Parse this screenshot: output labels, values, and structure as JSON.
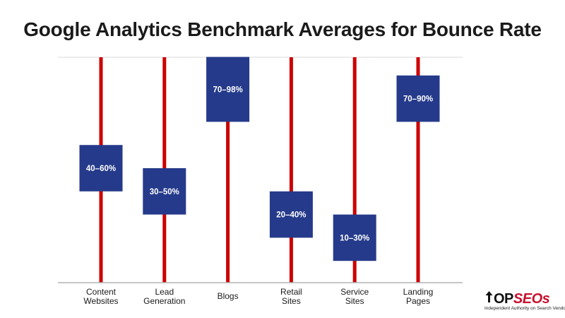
{
  "colors": {
    "stem": "#cc0000",
    "box": "#253a8a",
    "box_label": "#ffffff",
    "axis": "#b3b3b3",
    "category_label": "#1a1a1a",
    "title": "#1a1a1a",
    "brand_accent": "#c8102e"
  },
  "chart_data": {
    "type": "range",
    "title": "Google Analytics Benchmark Averages for Bounce Rate",
    "categories": [
      [
        "Content",
        "Websites"
      ],
      [
        "Lead",
        "Generation"
      ],
      [
        "Blogs"
      ],
      [
        "Retail",
        "Sites"
      ],
      [
        "Service",
        "Sites"
      ],
      [
        "Landing",
        "Pages"
      ]
    ],
    "ranges": [
      {
        "low": 40,
        "high": 60,
        "label": "40–60%"
      },
      {
        "low": 30,
        "high": 50,
        "label": "30–50%"
      },
      {
        "low": 70,
        "high": 98,
        "label": "70–98%"
      },
      {
        "low": 20,
        "high": 40,
        "label": "20–40%"
      },
      {
        "low": 10,
        "high": 30,
        "label": "10–30%"
      },
      {
        "low": 70,
        "high": 90,
        "label": "70–90%"
      }
    ],
    "ylim": [
      0,
      100
    ],
    "grid": false,
    "legend": "none",
    "xlabel": "",
    "ylabel": ""
  },
  "brand": {
    "name_top": "OP",
    "name_seos": "SEOs",
    "tagline": "Independent Authority on Search Vendors",
    "icon": "up-arrow-icon"
  }
}
